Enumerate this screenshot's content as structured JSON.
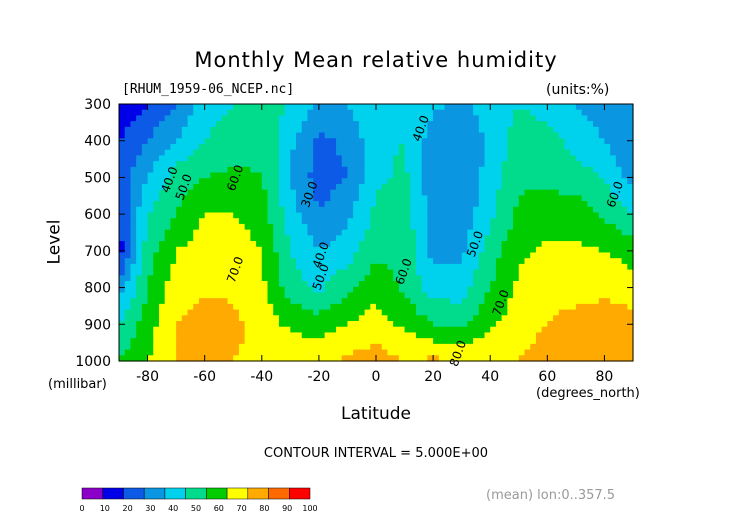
{
  "title": "Monthly Mean relative humidity",
  "source_label": "[RHUM_1959-06_NCEP.nc]",
  "units_label": "(units:%)",
  "contour_interval": "CONTOUR INTERVAL = 5.000E+00",
  "mean_label": "(mean) lon:0..357.5",
  "chart_data": {
    "type": "heatmap",
    "title": "Monthly Mean relative humidity",
    "xlabel": "Latitude",
    "x_unit": "(degrees_north)",
    "ylabel": "Level",
    "y_unit": "(millibar)",
    "xlim": [
      -90,
      90
    ],
    "ylim": [
      1000,
      300
    ],
    "x_ticks": [
      -80,
      -60,
      -40,
      -20,
      0,
      20,
      40,
      60,
      80
    ],
    "y_ticks": [
      300,
      400,
      500,
      600,
      700,
      800,
      900,
      1000
    ],
    "grid": false,
    "legend_position": "bottom-left",
    "colorbar": {
      "ticks": [
        0,
        10,
        20,
        30,
        40,
        50,
        60,
        70,
        80,
        90,
        100
      ],
      "colors": [
        "#8a00c8",
        "#0000e8",
        "#0c5ae6",
        "#0a96e0",
        "#00d2ee",
        "#00dc8c",
        "#00cc00",
        "#ffff00",
        "#ffaa00",
        "#ff6a00",
        "#ff0000"
      ]
    },
    "contour_labels": [
      {
        "text": "40.0",
        "lat": -71,
        "level": 510
      },
      {
        "text": "50.0",
        "lat": -66,
        "level": 530
      },
      {
        "text": "60.0",
        "lat": -48,
        "level": 505
      },
      {
        "text": "30.0",
        "lat": -22,
        "level": 550
      },
      {
        "text": "40.0",
        "lat": -18,
        "level": 715
      },
      {
        "text": "50.0",
        "lat": -18,
        "level": 775
      },
      {
        "text": "70.0",
        "lat": -48,
        "level": 755
      },
      {
        "text": "40.0",
        "lat": 17,
        "level": 370
      },
      {
        "text": "60.0",
        "lat": 11,
        "level": 760
      },
      {
        "text": "50.0",
        "lat": 36,
        "level": 685
      },
      {
        "text": "70.0",
        "lat": 45,
        "level": 845
      },
      {
        "text": "80.0",
        "lat": 30,
        "level": 983
      },
      {
        "text": "60.0",
        "lat": 85,
        "level": 550
      }
    ],
    "field": {
      "lats": [
        -90,
        -80,
        -70,
        -60,
        -50,
        -40,
        -30,
        -20,
        -10,
        0,
        10,
        20,
        30,
        40,
        50,
        60,
        70,
        80,
        90
      ],
      "levels": [
        300,
        400,
        500,
        600,
        700,
        800,
        900,
        1000
      ],
      "values": [
        [
          10,
          20,
          30,
          45,
          50,
          55,
          50,
          38,
          40,
          50,
          50,
          42,
          38,
          45,
          50,
          45,
          40,
          35,
          30
        ],
        [
          20,
          30,
          40,
          50,
          55,
          58,
          42,
          28,
          32,
          48,
          50,
          35,
          32,
          42,
          55,
          55,
          45,
          40,
          30
        ],
        [
          25,
          40,
          55,
          60,
          62,
          60,
          40,
          25,
          30,
          48,
          52,
          33,
          30,
          45,
          58,
          58,
          55,
          50,
          35
        ],
        [
          20,
          50,
          60,
          70,
          70,
          65,
          45,
          30,
          38,
          52,
          55,
          35,
          33,
          48,
          62,
          65,
          65,
          58,
          50
        ],
        [
          15,
          55,
          70,
          75,
          75,
          70,
          50,
          40,
          45,
          58,
          57,
          37,
          38,
          55,
          68,
          72,
          72,
          70,
          65
        ],
        [
          35,
          60,
          75,
          78,
          78,
          72,
          55,
          48,
          58,
          66,
          58,
          45,
          45,
          60,
          72,
          78,
          78,
          78,
          75
        ],
        [
          50,
          65,
          80,
          85,
          83,
          75,
          68,
          65,
          70,
          75,
          68,
          60,
          58,
          68,
          75,
          80,
          82,
          84,
          84
        ],
        [
          60,
          70,
          80,
          85,
          80,
          78,
          78,
          78,
          82,
          85,
          80,
          82,
          80,
          78,
          80,
          85,
          88,
          90,
          90
        ]
      ]
    }
  }
}
